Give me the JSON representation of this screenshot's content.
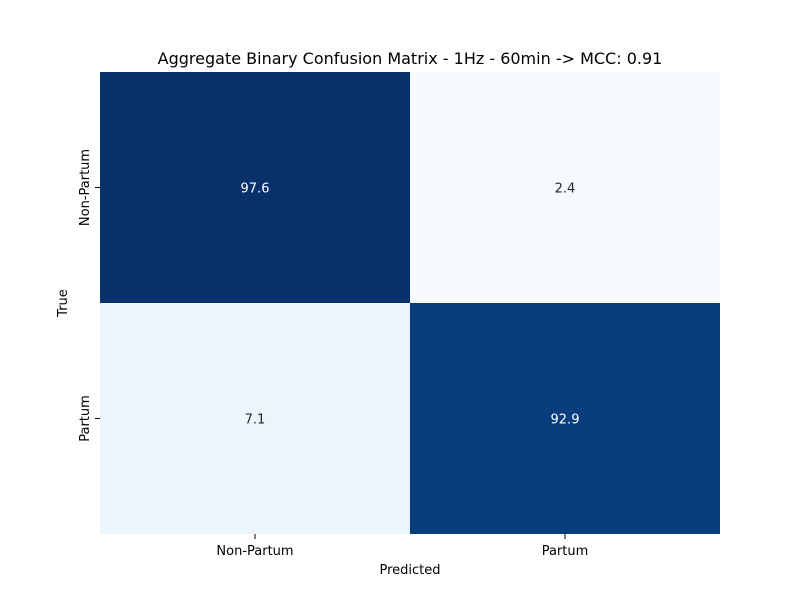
{
  "chart_data": {
    "type": "heatmap",
    "title": "Aggregate Binary Confusion Matrix - 1Hz - 60min -> MCC: 0.91",
    "xlabel": "Predicted",
    "ylabel": "True",
    "x_categories": [
      "Non-Partum",
      "Partum"
    ],
    "y_categories": [
      "Non-Partum",
      "Partum"
    ],
    "values": [
      [
        97.6,
        2.4
      ],
      [
        7.1,
        92.9
      ]
    ],
    "cell_labels": [
      [
        "97.6",
        "2.4"
      ],
      [
        "7.1",
        "92.9"
      ]
    ],
    "colormap": "Blues",
    "color_range": [
      2.4,
      97.6
    ],
    "colorbar": false,
    "light_color": "#f7fbff",
    "dark_color": "#08306b",
    "light_text_color": "#ffffff",
    "dark_text_color": "#262626"
  }
}
